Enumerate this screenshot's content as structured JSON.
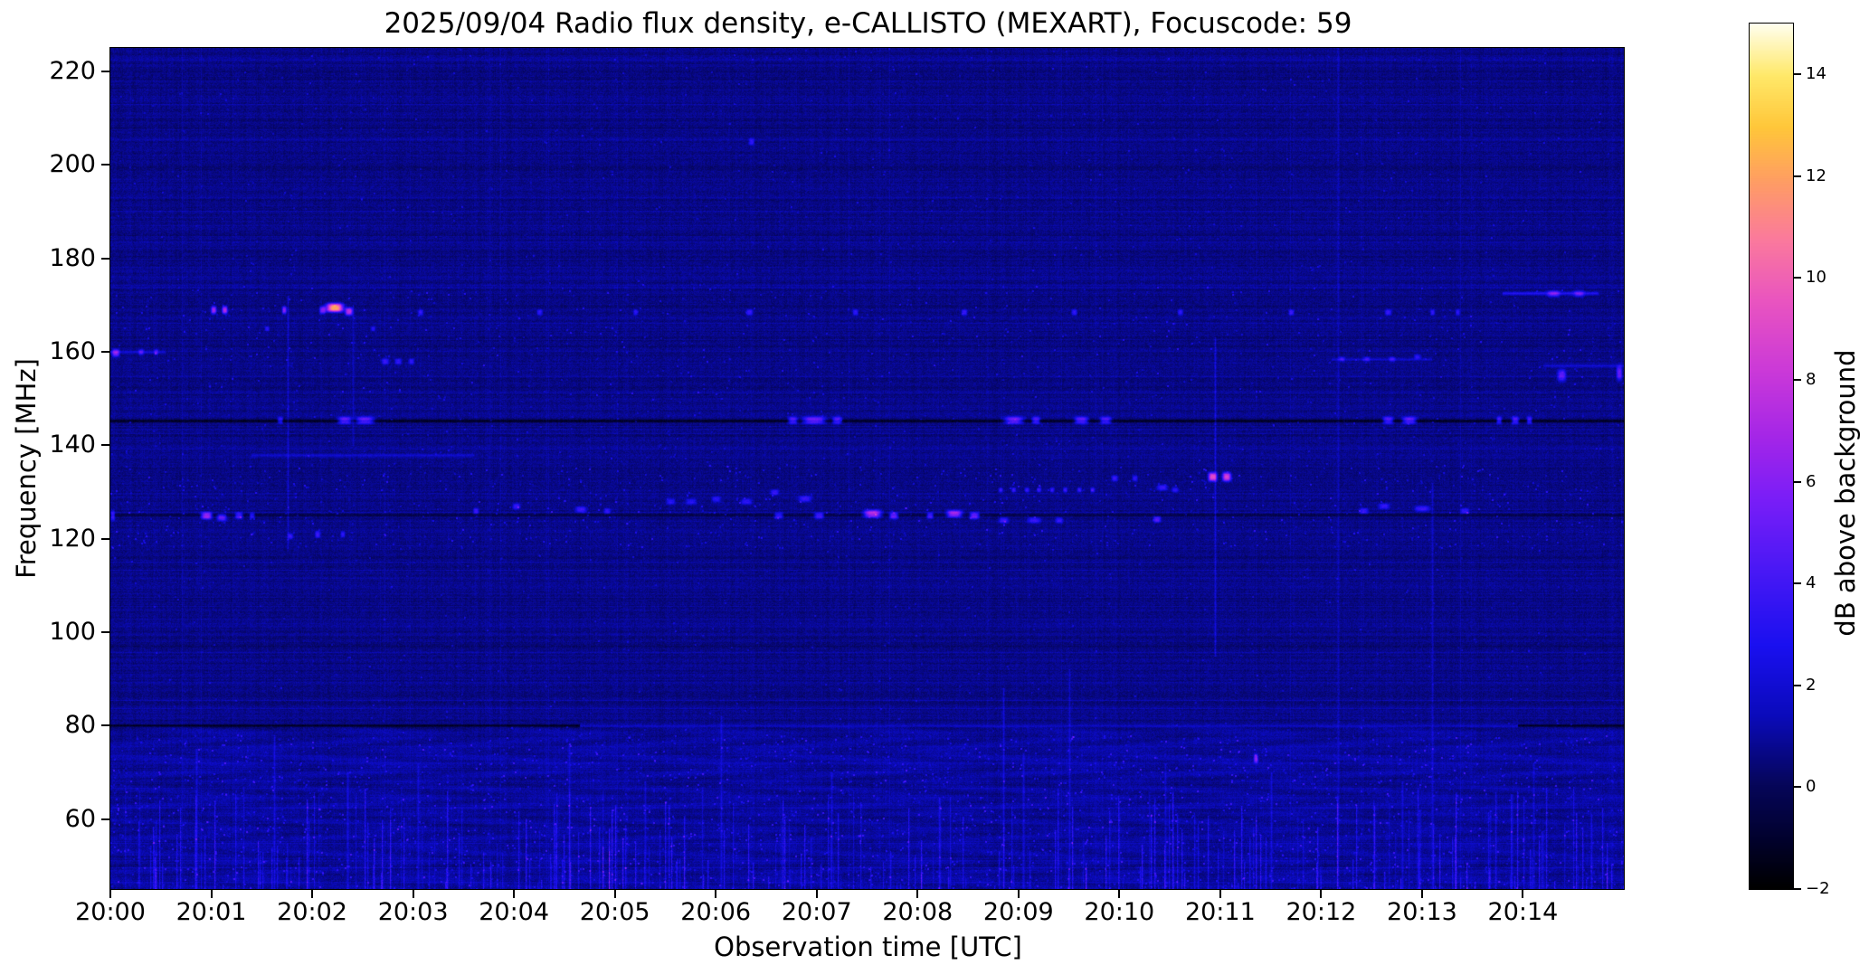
{
  "figure": {
    "background": "#ffffff"
  },
  "chart_data": {
    "type": "heatmap",
    "title": "2025/09/04  Radio flux density, e-CALLISTO (MEXART), Focuscode: 59",
    "xlabel": "Observation time [UTC]",
    "ylabel": "Frequency [MHz]",
    "colorbar_label": "dB above background",
    "x_range_minutes": [
      0,
      15
    ],
    "x_ticks": [
      {
        "m": 0,
        "label": "20:00"
      },
      {
        "m": 1,
        "label": "20:01"
      },
      {
        "m": 2,
        "label": "20:02"
      },
      {
        "m": 3,
        "label": "20:03"
      },
      {
        "m": 4,
        "label": "20:04"
      },
      {
        "m": 5,
        "label": "20:05"
      },
      {
        "m": 6,
        "label": "20:06"
      },
      {
        "m": 7,
        "label": "20:07"
      },
      {
        "m": 8,
        "label": "20:08"
      },
      {
        "m": 9,
        "label": "20:09"
      },
      {
        "m": 10,
        "label": "20:10"
      },
      {
        "m": 11,
        "label": "20:11"
      },
      {
        "m": 12,
        "label": "20:12"
      },
      {
        "m": 13,
        "label": "20:13"
      },
      {
        "m": 14,
        "label": "20:14"
      }
    ],
    "y_range_mhz": [
      45,
      225
    ],
    "y_ticks": [
      {
        "f": 60,
        "label": "60"
      },
      {
        "f": 80,
        "label": "80"
      },
      {
        "f": 100,
        "label": "100"
      },
      {
        "f": 120,
        "label": "120"
      },
      {
        "f": 140,
        "label": "140"
      },
      {
        "f": 160,
        "label": "160"
      },
      {
        "f": 180,
        "label": "180"
      },
      {
        "f": 200,
        "label": "200"
      },
      {
        "f": 220,
        "label": "220"
      }
    ],
    "color_range_db": [
      -2,
      15
    ],
    "colorbar_ticks": [
      {
        "v": -2,
        "label": "−2"
      },
      {
        "v": 0,
        "label": "0"
      },
      {
        "v": 2,
        "label": "2"
      },
      {
        "v": 4,
        "label": "4"
      },
      {
        "v": 6,
        "label": "6"
      },
      {
        "v": 8,
        "label": "8"
      },
      {
        "v": 10,
        "label": "10"
      },
      {
        "v": 12,
        "label": "12"
      },
      {
        "v": 14,
        "label": "14"
      }
    ],
    "colormap": {
      "name": "gnuplot2-like",
      "stops": [
        [
          0.0,
          "#000000"
        ],
        [
          0.06,
          "#020230"
        ],
        [
          0.12,
          "#06065a"
        ],
        [
          0.2,
          "#0b0bbc"
        ],
        [
          0.28,
          "#1a10f0"
        ],
        [
          0.36,
          "#4518f5"
        ],
        [
          0.45,
          "#7a1ef8"
        ],
        [
          0.52,
          "#a426e8"
        ],
        [
          0.6,
          "#cc3ad8"
        ],
        [
          0.68,
          "#ea55c0"
        ],
        [
          0.75,
          "#fb7a9d"
        ],
        [
          0.82,
          "#ff9f62"
        ],
        [
          0.88,
          "#ffc73a"
        ],
        [
          0.94,
          "#ffe96a"
        ],
        [
          1.0,
          "#fffff0"
        ]
      ]
    },
    "texture": {
      "seed": 20250904,
      "base": 0.55,
      "jitter": 0.8,
      "bottom_boost": 0.3,
      "bottom_wave": 0.22,
      "bottom_freq_mhz": 80
    },
    "bands": [
      {
        "f": 145.2,
        "t0": 0,
        "t1": 15,
        "db": -1.9,
        "hw": 1.6
      },
      {
        "f": 125.2,
        "t0": 0,
        "t1": 15,
        "db": -1.1,
        "hw": 1.3
      },
      {
        "f": 97.5,
        "t0": 0,
        "t1": 15,
        "db": -0.35,
        "hw": 2.0
      },
      {
        "f": 185,
        "t0": 0,
        "t1": 15,
        "db": -0.3,
        "hw": 2.0
      },
      {
        "f": 80,
        "t0": 0,
        "t1": 4.65,
        "db": -1.9,
        "hw": 1.6
      },
      {
        "f": 80,
        "t0": 13.95,
        "t1": 15,
        "db": -1.9,
        "hw": 1.6
      },
      {
        "f": 80,
        "t0": 4.65,
        "t1": 13.95,
        "db": 0.9,
        "hw": 1.2
      },
      {
        "f": 138,
        "t0": 1.4,
        "t1": 3.6,
        "db": 1.0,
        "hw": 1.6
      },
      {
        "f": 160,
        "t0": 0,
        "t1": 0.55,
        "db": 1.4,
        "hw": 1.4
      },
      {
        "f": 158.5,
        "t0": 12.1,
        "t1": 13.1,
        "db": 1.0,
        "hw": 1.4
      },
      {
        "f": 172.5,
        "t0": 13.8,
        "t1": 14.75,
        "db": 2.2,
        "hw": 1.6
      },
      {
        "f": 157,
        "t0": 14.2,
        "t1": 15,
        "db": 1.2,
        "hw": 1.6
      }
    ],
    "bursts_format": [
      "minute",
      "mhz",
      "db",
      "width_min",
      "height_mhz"
    ],
    "bursts": [
      [
        0.05,
        159.8,
        5,
        0.07,
        1.6
      ],
      [
        0.02,
        125,
        3.5,
        0.04,
        2
      ],
      [
        0.3,
        160,
        3,
        0.05,
        1.2
      ],
      [
        0.45,
        160,
        2.8,
        0.04,
        1.2
      ],
      [
        0.95,
        125,
        6.5,
        0.1,
        1.5
      ],
      [
        1.1,
        124.6,
        4.5,
        0.09,
        1.4
      ],
      [
        1.27,
        125,
        4,
        0.07,
        1.4
      ],
      [
        1.4,
        125,
        3,
        0.05,
        1.2
      ],
      [
        1.02,
        169,
        6,
        0.05,
        1.6
      ],
      [
        1.13,
        169,
        6.5,
        0.05,
        1.6
      ],
      [
        1.55,
        165,
        2.6,
        0.04,
        1
      ],
      [
        1.68,
        145.4,
        3.5,
        0.05,
        1.4
      ],
      [
        1.72,
        169,
        5.5,
        0.04,
        1.6
      ],
      [
        1.78,
        120.6,
        3,
        0.05,
        1.2
      ],
      [
        2.05,
        121,
        3.2,
        0.05,
        1.4
      ],
      [
        2.1,
        169,
        5,
        0.06,
        1.6
      ],
      [
        2.22,
        169.5,
        11.5,
        0.16,
        1.8
      ],
      [
        2.36,
        168.7,
        7,
        0.07,
        1.6
      ],
      [
        2.3,
        121,
        2.8,
        0.04,
        1.2
      ],
      [
        2.32,
        145.4,
        5,
        0.13,
        1.5
      ],
      [
        2.52,
        145.4,
        5,
        0.17,
        1.5
      ],
      [
        2.6,
        165,
        2.4,
        0.04,
        1
      ],
      [
        2.72,
        158,
        3,
        0.07,
        1.2
      ],
      [
        2.85,
        158,
        3,
        0.06,
        1.2
      ],
      [
        2.98,
        158,
        2.8,
        0.05,
        1.2
      ],
      [
        3.07,
        168.5,
        3,
        0.05,
        1.2
      ],
      [
        3.62,
        126,
        3,
        0.05,
        1.2
      ],
      [
        4.02,
        127,
        3,
        0.07,
        1.2
      ],
      [
        4.25,
        168.5,
        3,
        0.05,
        1.2
      ],
      [
        4.66,
        126.3,
        3.2,
        0.1,
        1.3
      ],
      [
        4.92,
        126,
        2.8,
        0.06,
        1.2
      ],
      [
        5.2,
        168.5,
        2.8,
        0.04,
        1.2
      ],
      [
        5.55,
        128,
        2.6,
        0.08,
        1.2
      ],
      [
        5.75,
        128,
        2.6,
        0.1,
        1.2
      ],
      [
        6.0,
        128.5,
        2.6,
        0.08,
        1.2
      ],
      [
        6.3,
        128,
        2.8,
        0.1,
        1.2
      ],
      [
        6.33,
        168.5,
        3.2,
        0.06,
        1.2
      ],
      [
        6.35,
        205,
        2.8,
        0.05,
        1.4
      ],
      [
        6.58,
        130,
        3,
        0.08,
        1.2
      ],
      [
        6.62,
        125,
        3.5,
        0.08,
        1.3
      ],
      [
        6.76,
        145.4,
        4.5,
        0.09,
        1.5
      ],
      [
        6.88,
        128.6,
        3,
        0.12,
        1.3
      ],
      [
        6.97,
        145.4,
        5.5,
        0.22,
        1.5
      ],
      [
        7.02,
        125,
        4,
        0.09,
        1.3
      ],
      [
        7.2,
        145.4,
        4.5,
        0.09,
        1.5
      ],
      [
        7.38,
        168.5,
        3,
        0.05,
        1.2
      ],
      [
        7.55,
        125.4,
        7,
        0.16,
        1.6
      ],
      [
        7.76,
        125,
        5,
        0.08,
        1.4
      ],
      [
        8.12,
        125,
        4,
        0.06,
        1.3
      ],
      [
        8.36,
        125.4,
        6.5,
        0.14,
        1.5
      ],
      [
        8.46,
        168.5,
        3.2,
        0.05,
        1.2
      ],
      [
        8.56,
        125,
        5,
        0.09,
        1.4
      ],
      [
        8.82,
        130.5,
        3,
        0.04,
        1
      ],
      [
        8.85,
        124,
        3.2,
        0.09,
        1.2
      ],
      [
        8.95,
        130.5,
        3,
        0.04,
        1
      ],
      [
        8.95,
        145.4,
        5.5,
        0.18,
        1.5
      ],
      [
        9.08,
        130.5,
        3,
        0.04,
        1
      ],
      [
        9.15,
        124,
        3,
        0.12,
        1.2
      ],
      [
        9.17,
        145.4,
        4.5,
        0.08,
        1.5
      ],
      [
        9.2,
        130.5,
        3,
        0.04,
        1
      ],
      [
        9.33,
        130.5,
        3,
        0.04,
        1
      ],
      [
        9.4,
        124,
        2.8,
        0.07,
        1.2
      ],
      [
        9.46,
        130.5,
        3,
        0.04,
        1
      ],
      [
        9.55,
        168.5,
        3,
        0.05,
        1.2
      ],
      [
        9.6,
        130.5,
        3,
        0.04,
        1
      ],
      [
        9.62,
        145.4,
        5,
        0.13,
        1.5
      ],
      [
        9.73,
        130.5,
        3,
        0.04,
        1
      ],
      [
        9.86,
        145.4,
        4.5,
        0.11,
        1.5
      ],
      [
        9.95,
        133,
        3,
        0.06,
        1.2
      ],
      [
        10.15,
        133,
        2.8,
        0.05,
        1.2
      ],
      [
        10.37,
        124.2,
        4,
        0.07,
        1.3
      ],
      [
        10.42,
        131,
        3,
        0.1,
        1.2
      ],
      [
        10.55,
        130.5,
        2.8,
        0.06,
        1
      ],
      [
        10.6,
        168.5,
        3,
        0.05,
        1.2
      ],
      [
        10.92,
        133.3,
        8.5,
        0.08,
        1.8
      ],
      [
        11.06,
        133.3,
        8,
        0.08,
        1.8
      ],
      [
        11.35,
        73,
        5,
        0.04,
        1.8
      ],
      [
        11.7,
        168.5,
        3.2,
        0.05,
        1.2
      ],
      [
        12.42,
        126,
        3,
        0.08,
        1.2
      ],
      [
        12.62,
        127,
        3,
        0.1,
        1.2
      ],
      [
        12.66,
        145.4,
        4.5,
        0.1,
        1.5
      ],
      [
        12.66,
        168.5,
        3,
        0.06,
        1.2
      ],
      [
        12.2,
        158.5,
        2.6,
        0.06,
        1
      ],
      [
        12.45,
        158.5,
        2.6,
        0.06,
        1
      ],
      [
        12.7,
        158.5,
        2.6,
        0.06,
        1
      ],
      [
        12.87,
        145.4,
        5,
        0.13,
        1.5
      ],
      [
        12.95,
        159,
        2.6,
        0.06,
        1
      ],
      [
        13.0,
        126.5,
        3,
        0.14,
        1.2
      ],
      [
        13.1,
        168.5,
        3,
        0.04,
        1.2
      ],
      [
        13.35,
        168.5,
        2.8,
        0.04,
        1.2
      ],
      [
        13.42,
        126,
        2.8,
        0.08,
        1.2
      ],
      [
        13.76,
        145.4,
        4,
        0.05,
        1.5
      ],
      [
        13.92,
        145.4,
        4.5,
        0.07,
        1.5
      ],
      [
        14.06,
        145.4,
        4,
        0.05,
        1.5
      ],
      [
        14.3,
        172.5,
        3.5,
        0.12,
        1.4
      ],
      [
        14.38,
        155,
        4,
        0.08,
        2.5
      ],
      [
        14.55,
        172.5,
        3,
        0.1,
        1.4
      ],
      [
        14.95,
        155.5,
        4.5,
        0.05,
        3
      ]
    ],
    "vertical_streaks": [
      {
        "m": 1.76,
        "f0": 118,
        "f1": 172,
        "db": 1.6
      },
      {
        "m": 2.4,
        "f0": 140,
        "f1": 170,
        "db": 1.0
      },
      {
        "m": 6.05,
        "f0": 45,
        "f1": 82,
        "db": 1.4
      },
      {
        "m": 8.85,
        "f0": 45,
        "f1": 88,
        "db": 1.6
      },
      {
        "m": 9.5,
        "f0": 45,
        "f1": 92,
        "db": 1.4
      },
      {
        "m": 10.95,
        "f0": 95,
        "f1": 163,
        "db": 2.0
      },
      {
        "m": 12.17,
        "f0": 48,
        "f1": 225,
        "db": 1.1
      },
      {
        "m": 13.1,
        "f0": 45,
        "f1": 132,
        "db": 1.2
      },
      {
        "m": 4.55,
        "f0": 45,
        "f1": 76,
        "db": 1.3
      },
      {
        "m": 0.85,
        "f0": 45,
        "f1": 75,
        "db": 1.5
      },
      {
        "m": 1.62,
        "f0": 45,
        "f1": 78,
        "db": 1.7
      },
      {
        "m": 2.35,
        "f0": 45,
        "f1": 70,
        "db": 1.8
      },
      {
        "m": 3.05,
        "f0": 45,
        "f1": 72,
        "db": 1.4
      },
      {
        "m": 5.3,
        "f0": 45,
        "f1": 68,
        "db": 1.3
      },
      {
        "m": 7.15,
        "f0": 45,
        "f1": 70,
        "db": 1.3
      },
      {
        "m": 9.05,
        "f0": 45,
        "f1": 74,
        "db": 1.6
      },
      {
        "m": 10.45,
        "f0": 45,
        "f1": 72,
        "db": 1.4
      },
      {
        "m": 11.5,
        "f0": 45,
        "f1": 70,
        "db": 1.5
      },
      {
        "m": 12.8,
        "f0": 45,
        "f1": 68,
        "db": 1.3
      },
      {
        "m": 14.1,
        "f0": 45,
        "f1": 72,
        "db": 1.4
      }
    ],
    "speckle_regions": [
      {
        "f0": 45,
        "f1": 78,
        "count": 2600,
        "db": [
          0.7,
          3.0
        ]
      },
      {
        "f0": 118,
        "f1": 136,
        "count": 800,
        "db": [
          0.7,
          2.6
        ]
      },
      {
        "f0": 150,
        "f1": 174,
        "count": 600,
        "db": [
          0.7,
          2.4
        ]
      },
      {
        "f0": 78,
        "f1": 118,
        "count": 500,
        "db": [
          0.5,
          1.6
        ]
      },
      {
        "f0": 136,
        "f1": 150,
        "count": 300,
        "db": [
          0.5,
          1.6
        ]
      },
      {
        "f0": 174,
        "f1": 225,
        "count": 700,
        "db": [
          0.5,
          1.8
        ]
      }
    ],
    "micro_streaks": {
      "count": 260,
      "f0": 45,
      "f1": 78,
      "max_len_mhz": 22,
      "db": [
        0.8,
        3.2
      ]
    }
  }
}
